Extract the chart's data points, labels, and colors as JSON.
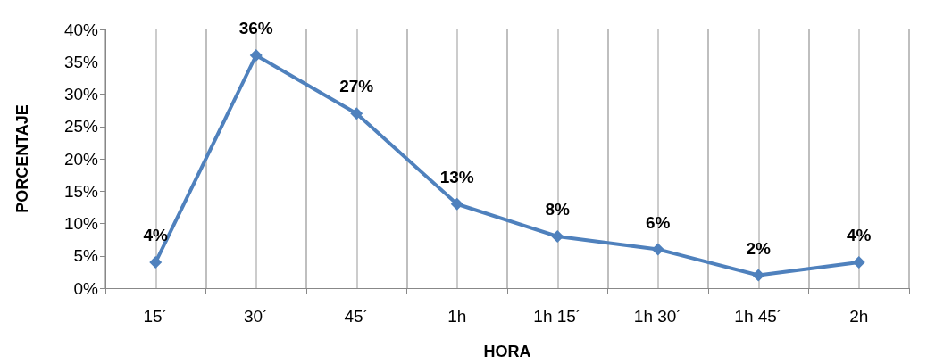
{
  "chart_data": {
    "type": "line",
    "xlabel": "HORA",
    "ylabel": "PORCENTAJE",
    "categories": [
      "15´",
      "30´",
      "45´",
      "1h",
      "1h 15´",
      "1h 30´",
      "1h 45´",
      "2h"
    ],
    "series": [
      {
        "color": "#4f81bd",
        "values": [
          4,
          36,
          27,
          13,
          8,
          6,
          2,
          4
        ],
        "value_labels": [
          "4%",
          "36%",
          "27%",
          "13%",
          "8%",
          "6%",
          "2%",
          "4%"
        ]
      }
    ],
    "ylim": [
      0,
      40
    ],
    "yticks": [
      {
        "value": 0,
        "label": "0%"
      },
      {
        "value": 5,
        "label": "5%"
      },
      {
        "value": 10,
        "label": "10%"
      },
      {
        "value": 15,
        "label": "15%"
      },
      {
        "value": 20,
        "label": "20%"
      },
      {
        "value": 25,
        "label": "25%"
      },
      {
        "value": 30,
        "label": "30%"
      },
      {
        "value": 35,
        "label": "35%"
      },
      {
        "value": 40,
        "label": "40%"
      }
    ],
    "grid": "x",
    "marker": "diamond",
    "line_style": "solid"
  }
}
